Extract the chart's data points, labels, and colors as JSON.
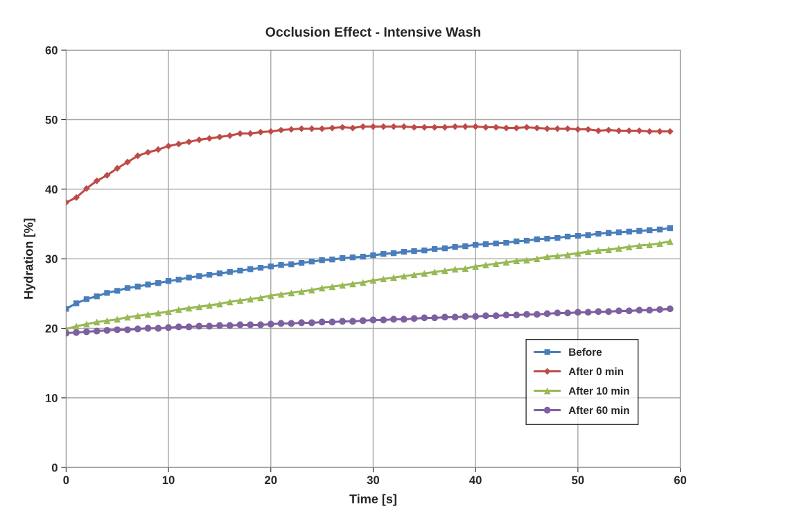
{
  "chart_data": {
    "type": "line",
    "title": "Occlusion Effect - Intensive Wash",
    "xlabel": "Time [s]",
    "ylabel": "Hydration [%]",
    "x": [
      0,
      1,
      2,
      3,
      4,
      5,
      6,
      7,
      8,
      9,
      10,
      11,
      12,
      13,
      14,
      15,
      16,
      17,
      18,
      19,
      20,
      21,
      22,
      23,
      24,
      25,
      26,
      27,
      28,
      29,
      30,
      31,
      32,
      33,
      34,
      35,
      36,
      37,
      38,
      39,
      40,
      41,
      42,
      43,
      44,
      45,
      46,
      47,
      48,
      49,
      50,
      51,
      52,
      53,
      54,
      55,
      56,
      57,
      58,
      59
    ],
    "series": [
      {
        "name": "Before",
        "color": "#4a7ebb",
        "marker": "square",
        "values": [
          22.8,
          23.6,
          24.2,
          24.6,
          25.1,
          25.4,
          25.8,
          26.0,
          26.3,
          26.5,
          26.8,
          27.0,
          27.3,
          27.5,
          27.7,
          27.9,
          28.1,
          28.3,
          28.5,
          28.7,
          28.9,
          29.1,
          29.2,
          29.4,
          29.6,
          29.8,
          29.9,
          30.1,
          30.2,
          30.3,
          30.5,
          30.7,
          30.8,
          31.0,
          31.1,
          31.2,
          31.4,
          31.5,
          31.7,
          31.8,
          32.0,
          32.1,
          32.2,
          32.3,
          32.5,
          32.6,
          32.8,
          32.9,
          33.0,
          33.2,
          33.3,
          33.4,
          33.6,
          33.7,
          33.8,
          33.9,
          34.0,
          34.1,
          34.2,
          34.4
        ]
      },
      {
        "name": "After 0 min",
        "color": "#be4b48",
        "marker": "diamond",
        "values": [
          38.1,
          38.8,
          40.1,
          41.2,
          42.0,
          43.0,
          43.9,
          44.8,
          45.3,
          45.7,
          46.2,
          46.5,
          46.8,
          47.1,
          47.3,
          47.5,
          47.7,
          48.0,
          48.0,
          48.2,
          48.3,
          48.5,
          48.6,
          48.7,
          48.7,
          48.7,
          48.8,
          48.9,
          48.8,
          49.0,
          49.0,
          49.0,
          49.0,
          49.0,
          48.9,
          48.9,
          48.9,
          48.9,
          49.0,
          49.0,
          49.0,
          48.9,
          48.9,
          48.8,
          48.8,
          48.9,
          48.8,
          48.7,
          48.7,
          48.7,
          48.6,
          48.6,
          48.4,
          48.5,
          48.4,
          48.4,
          48.4,
          48.3,
          48.3,
          48.3
        ]
      },
      {
        "name": "After 10 min",
        "color": "#98b954",
        "marker": "triangle",
        "values": [
          19.9,
          20.3,
          20.6,
          20.9,
          21.1,
          21.3,
          21.6,
          21.8,
          22.0,
          22.2,
          22.4,
          22.7,
          22.9,
          23.1,
          23.3,
          23.5,
          23.8,
          24.0,
          24.2,
          24.4,
          24.7,
          24.9,
          25.1,
          25.3,
          25.5,
          25.8,
          26.0,
          26.2,
          26.4,
          26.6,
          26.9,
          27.1,
          27.3,
          27.5,
          27.7,
          27.9,
          28.1,
          28.3,
          28.5,
          28.6,
          28.9,
          29.1,
          29.3,
          29.5,
          29.7,
          29.8,
          30.0,
          30.3,
          30.4,
          30.6,
          30.8,
          31.0,
          31.2,
          31.3,
          31.5,
          31.7,
          31.9,
          32.0,
          32.2,
          32.5
        ]
      },
      {
        "name": "After 60 min",
        "color": "#7d60a0",
        "marker": "circle",
        "values": [
          19.3,
          19.4,
          19.5,
          19.6,
          19.7,
          19.8,
          19.8,
          19.9,
          20.0,
          20.0,
          20.1,
          20.2,
          20.2,
          20.3,
          20.3,
          20.4,
          20.4,
          20.5,
          20.5,
          20.5,
          20.6,
          20.7,
          20.7,
          20.8,
          20.8,
          20.9,
          20.9,
          21.0,
          21.0,
          21.1,
          21.2,
          21.2,
          21.3,
          21.3,
          21.4,
          21.5,
          21.5,
          21.6,
          21.6,
          21.7,
          21.7,
          21.8,
          21.8,
          21.9,
          21.9,
          22.0,
          22.0,
          22.1,
          22.2,
          22.2,
          22.3,
          22.3,
          22.4,
          22.4,
          22.5,
          22.5,
          22.6,
          22.6,
          22.7,
          22.8
        ]
      }
    ],
    "xlim": [
      0,
      60
    ],
    "xticks": [
      0,
      10,
      20,
      30,
      40,
      50,
      60
    ],
    "ylim": [
      0,
      60
    ],
    "yticks": [
      0,
      10,
      20,
      30,
      40,
      50,
      60
    ],
    "grid": true,
    "legend": "bottom right",
    "line_style": "solid"
  }
}
